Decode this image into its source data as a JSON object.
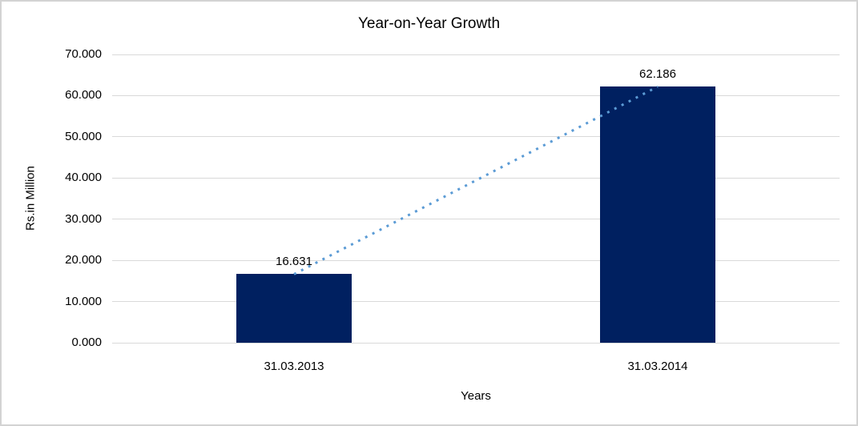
{
  "chart": {
    "title": "Year-on-Year Growth",
    "y_axis_title": "Rs.in Million",
    "x_axis_title": "Years",
    "colors": {
      "bar": "#002060",
      "trendline": "#5B9BD5",
      "gridline": "#D9D9D9",
      "frame_border": "#D3D3D3",
      "background": "#FFFFFF",
      "text": "#000000"
    }
  },
  "chart_data": {
    "type": "bar",
    "title": "Year-on-Year Growth",
    "xlabel": "Years",
    "ylabel": "Rs.in Million",
    "categories": [
      "31.03.2013",
      "31.03.2014"
    ],
    "values": [
      16.631,
      62.186
    ],
    "data_labels": [
      "16.631",
      "62.186"
    ],
    "ylim": [
      0,
      70
    ],
    "yticks": [
      0,
      10,
      20,
      30,
      40,
      50,
      60,
      70
    ],
    "ytick_labels": [
      "0.000",
      "10.000",
      "20.000",
      "30.000",
      "40.000",
      "50.000",
      "60.000",
      "70.000"
    ],
    "grid": true,
    "legend": false,
    "trendline": {
      "style": "dotted",
      "connects": [
        "31.03.2013",
        "31.03.2014"
      ]
    }
  }
}
